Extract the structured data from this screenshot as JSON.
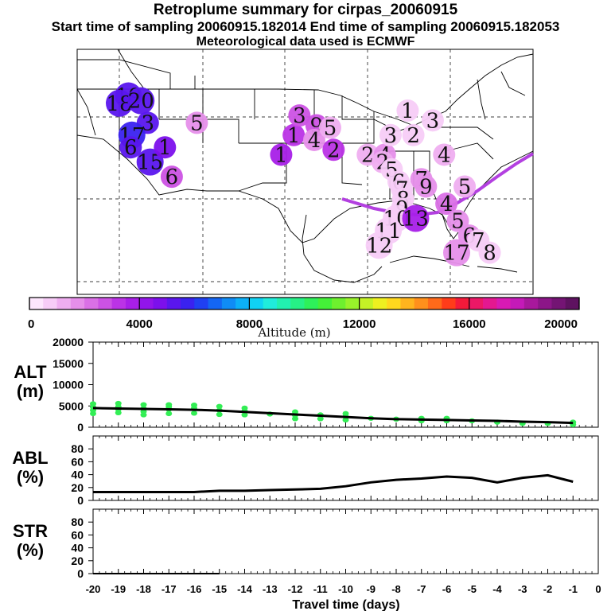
{
  "titles": {
    "main": "Retroplume summary for cirpas_20060915",
    "sampling": "Start time of sampling 20060915.182014     End time of sampling 20060915.182053",
    "met": "Meteorological data used is ECMWF"
  },
  "colors": {
    "trajectory": "#b340e0",
    "alt_points": "#33ee55",
    "line": "#000000"
  },
  "colorbar": {
    "label": "Altitude (m)",
    "ticks": [
      "0",
      "4000",
      "8000",
      "12000",
      "16000",
      "20000"
    ],
    "colors": [
      "#fde6fd",
      "#f7ccf7",
      "#efaef0",
      "#e68fea",
      "#da70e6",
      "#cc52e4",
      "#bb33e6",
      "#a81fe8",
      "#9215ea",
      "#7c10ec",
      "#5a16ee",
      "#3a22f0",
      "#2040f2",
      "#1466f4",
      "#0f8cf6",
      "#0cb0f8",
      "#10d2f4",
      "#20ecdc",
      "#22f0b0",
      "#26f086",
      "#2ef05a",
      "#44f038",
      "#6ef02e",
      "#98f22a",
      "#c4f226",
      "#eef020",
      "#ffd81e",
      "#ffb41e",
      "#ff901c",
      "#ff6a1a",
      "#ff3c1a",
      "#f41a3a",
      "#ec1866",
      "#e41890",
      "#d81ab4",
      "#c41ab8",
      "#a8189c",
      "#8c1688",
      "#741474",
      "#5e1260"
    ]
  },
  "map_labels": [
    {
      "text": "19",
      "x": 1.9,
      "y": 4.5,
      "alt": 5200
    },
    {
      "text": "18",
      "x": 2.2,
      "y": 3.7,
      "alt": 5000
    },
    {
      "text": "20",
      "x": 2.1,
      "y": 5.6,
      "alt": 5400
    },
    {
      "text": "3",
      "x": 3.0,
      "y": 6.2,
      "alt": 5000
    },
    {
      "text": "17",
      "x": 3.5,
      "y": 4.8,
      "alt": 5600
    },
    {
      "text": "6",
      "x": 4.0,
      "y": 4.7,
      "alt": 5300
    },
    {
      "text": "15",
      "x": 4.6,
      "y": 6.4,
      "alt": 5000
    },
    {
      "text": "1",
      "x": 4.0,
      "y": 7.7,
      "alt": 4700
    },
    {
      "text": "6",
      "x": 5.2,
      "y": 8.3,
      "alt": 2600
    },
    {
      "text": "5",
      "x": 3.0,
      "y": 10.5,
      "alt": 1700
    },
    {
      "text": "1",
      "x": 4.3,
      "y": 17.9,
      "alt": 3600
    },
    {
      "text": "1",
      "x": 3.5,
      "y": 19.0,
      "alt": 3400
    },
    {
      "text": "3",
      "x": 2.7,
      "y": 19.5,
      "alt": 2700
    },
    {
      "text": "9",
      "x": 3.1,
      "y": 21.0,
      "alt": 2700
    },
    {
      "text": "4",
      "x": 3.7,
      "y": 20.8,
      "alt": 1600
    },
    {
      "text": "5",
      "x": 3.2,
      "y": 22.2,
      "alt": 1400
    },
    {
      "text": "2",
      "x": 4.1,
      "y": 22.5,
      "alt": 3000
    },
    {
      "text": "2",
      "x": 4.3,
      "y": 25.5,
      "alt": 1400
    },
    {
      "text": "4",
      "x": 4.3,
      "y": 27.0,
      "alt": 1600
    },
    {
      "text": "2",
      "x": 4.6,
      "y": 26.8,
      "alt": 1200
    },
    {
      "text": "3",
      "x": 3.5,
      "y": 27.5,
      "alt": 800
    },
    {
      "text": "1",
      "x": 2.5,
      "y": 29.0,
      "alt": 600
    },
    {
      "text": "2",
      "x": 3.5,
      "y": 29.5,
      "alt": 700
    },
    {
      "text": "3",
      "x": 2.9,
      "y": 31.2,
      "alt": 700
    },
    {
      "text": "4",
      "x": 4.3,
      "y": 32.2,
      "alt": 1200
    },
    {
      "text": "4",
      "x": 6.3,
      "y": 32.4,
      "alt": 2200
    },
    {
      "text": "7",
      "x": 5.3,
      "y": 30.2,
      "alt": 1500
    },
    {
      "text": "9",
      "x": 5.6,
      "y": 30.6,
      "alt": 1500
    },
    {
      "text": "5",
      "x": 5.6,
      "y": 34.0,
      "alt": 1200
    },
    {
      "text": "5",
      "x": 7.0,
      "y": 33.4,
      "alt": 1900
    },
    {
      "text": "6",
      "x": 7.6,
      "y": 34.4,
      "alt": 1800
    },
    {
      "text": "7",
      "x": 7.8,
      "y": 35.2,
      "alt": 600
    },
    {
      "text": "17",
      "x": 8.3,
      "y": 33.3,
      "alt": 1900
    },
    {
      "text": "8",
      "x": 8.3,
      "y": 36.2,
      "alt": 600
    },
    {
      "text": "5",
      "x": 4.9,
      "y": 27.6,
      "alt": 800
    },
    {
      "text": "6",
      "x": 5.4,
      "y": 28.2,
      "alt": 800
    },
    {
      "text": "7",
      "x": 5.7,
      "y": 28.5,
      "alt": 800
    },
    {
      "text": "8",
      "x": 6.1,
      "y": 28.6,
      "alt": 800
    },
    {
      "text": "9",
      "x": 6.5,
      "y": 28.5,
      "alt": 800
    },
    {
      "text": "10",
      "x": 6.9,
      "y": 28.0,
      "alt": 800
    },
    {
      "text": "11",
      "x": 7.4,
      "y": 27.3,
      "alt": 800
    },
    {
      "text": "12",
      "x": 8.0,
      "y": 26.5,
      "alt": 800
    },
    {
      "text": "13",
      "x": 6.9,
      "y": 29.7,
      "alt": 3800
    }
  ],
  "chart_data": [
    {
      "type": "line",
      "panel": "ALT",
      "ylabel": "ALT\n(m)",
      "ylim": [
        0,
        20000
      ],
      "yticks": [
        0,
        5000,
        10000,
        15000,
        20000
      ],
      "xlim": [
        -20,
        0
      ],
      "x": [
        -20,
        -19,
        -18,
        -17,
        -16,
        -15,
        -14,
        -13,
        -12,
        -11,
        -10,
        -9,
        -8,
        -7,
        -6,
        -5,
        -4,
        -3,
        -2,
        -1
      ],
      "values": [
        4500,
        4400,
        4300,
        4200,
        4100,
        3900,
        3600,
        3300,
        3000,
        2700,
        2400,
        2100,
        1900,
        1800,
        1700,
        1600,
        1500,
        1300,
        1200,
        1000
      ],
      "scatter": [
        {
          "x": -20,
          "values": [
            3200,
            4000,
            4700,
            5500
          ]
        },
        {
          "x": -19,
          "values": [
            3400,
            4200,
            4800,
            5600
          ]
        },
        {
          "x": -18,
          "values": [
            2900,
            3700,
            4400,
            5300
          ]
        },
        {
          "x": -17,
          "values": [
            3200,
            4200,
            4800,
            5300
          ]
        },
        {
          "x": -16,
          "values": [
            3300,
            4500,
            5200
          ]
        },
        {
          "x": -15,
          "values": [
            3000,
            4000,
            4900
          ]
        },
        {
          "x": -14,
          "values": [
            2900,
            3800,
            4500
          ]
        },
        {
          "x": -13,
          "values": [
            3100
          ]
        },
        {
          "x": -12,
          "values": [
            2000,
            2800,
            3600
          ]
        },
        {
          "x": -11,
          "values": [
            2000,
            2900
          ]
        },
        {
          "x": -10,
          "values": [
            1700,
            2500,
            3200
          ]
        },
        {
          "x": -9,
          "values": [
            2100
          ]
        },
        {
          "x": -8,
          "values": [
            1900
          ]
        },
        {
          "x": -7,
          "values": [
            1500,
            2100
          ]
        },
        {
          "x": -6,
          "values": [
            1500,
            2100
          ]
        },
        {
          "x": -5,
          "values": [
            1500
          ]
        },
        {
          "x": -4,
          "values": [
            1200
          ]
        },
        {
          "x": -3,
          "values": [
            900
          ]
        },
        {
          "x": -2,
          "values": [
            900
          ]
        },
        {
          "x": -1,
          "values": [
            600,
            1200
          ]
        }
      ]
    },
    {
      "type": "line",
      "panel": "ABL",
      "ylabel": "ABL\n(%)",
      "ylim": [
        0,
        100
      ],
      "yticks": [
        0,
        20,
        40,
        60,
        80
      ],
      "xlim": [
        -20,
        0
      ],
      "x": [
        -20,
        -19,
        -18,
        -17,
        -16,
        -15,
        -14,
        -13,
        -12,
        -11,
        -10,
        -9,
        -8,
        -7,
        -6,
        -5,
        -4,
        -3,
        -2,
        -1
      ],
      "values": [
        13,
        13,
        13,
        13,
        13,
        15,
        15,
        16,
        17,
        18,
        22,
        28,
        32,
        34,
        37,
        35,
        28,
        35,
        39,
        29
      ]
    },
    {
      "type": "line",
      "panel": "STR",
      "ylabel": "STR\n(%)",
      "ylim": [
        0,
        100
      ],
      "yticks": [
        0,
        20,
        40,
        60,
        80
      ],
      "xlim": [
        -20,
        0
      ],
      "x": [
        -20,
        -19,
        -18,
        -17,
        -16,
        -15,
        -14,
        -13,
        -12,
        -11,
        -10,
        -9,
        -8,
        -7,
        -6,
        -5,
        -4,
        -3,
        -2,
        -1
      ],
      "values": [
        0,
        0,
        0,
        0,
        0,
        0,
        0,
        0,
        0,
        0,
        0,
        0,
        0,
        0,
        0,
        0,
        0,
        0,
        0,
        0
      ]
    }
  ],
  "x_axis": {
    "label": "Travel time (days)",
    "ticks": [
      "-20",
      "-19",
      "-18",
      "-17",
      "-16",
      "-15",
      "-14",
      "-13",
      "-12",
      "-11",
      "-10",
      "-9",
      "-8",
      "-7",
      "-6",
      "-5",
      "-4",
      "-3",
      "-2",
      "-1",
      "0"
    ]
  }
}
